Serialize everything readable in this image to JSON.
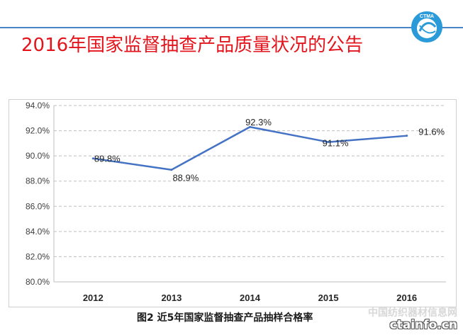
{
  "header": {
    "title": "2016年国家监督抽查产品质量状况的公告",
    "logo_text": "CTMA"
  },
  "chart_data": {
    "type": "line",
    "categories": [
      "2012",
      "2013",
      "2014",
      "2015",
      "2016"
    ],
    "series": [
      {
        "values": [
          89.8,
          88.9,
          92.3,
          91.1,
          91.6
        ],
        "color": "#4472c4"
      }
    ],
    "data_labels": [
      "89.8%",
      "88.9%",
      "92.3%",
      "91.1%",
      "91.6%"
    ],
    "y_ticks": [
      80.0,
      82.0,
      84.0,
      86.0,
      88.0,
      90.0,
      92.0,
      94.0
    ],
    "y_tick_labels": [
      "80.0%",
      "82.0%",
      "84.0%",
      "86.0%",
      "88.0%",
      "90.0%",
      "92.0%",
      "94.0%"
    ],
    "ylim": [
      80.0,
      94.0
    ],
    "grid": "horizontal dashed",
    "legend": "none",
    "title": "",
    "xlabel": "",
    "ylabel": ""
  },
  "caption": {
    "text": "图2 近5年国家监督抽查产品抽样合格率"
  },
  "watermark": {
    "line1": "中国纺织器材信息网",
    "line2": "ctainfo.cn"
  }
}
